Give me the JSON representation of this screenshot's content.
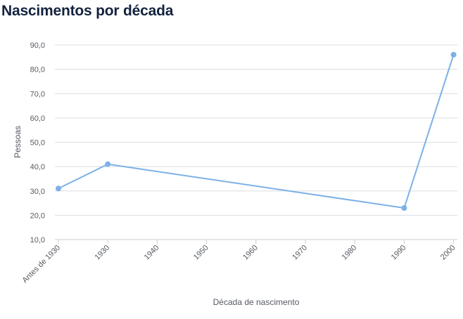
{
  "page_title": "Nascimentos por década",
  "colors": {
    "title": "#13233f",
    "series": "#7cb1e6",
    "grid": "#d9dde3",
    "text": "#555a61"
  },
  "chart_data": {
    "type": "line",
    "title": "Nascimentos por década",
    "xlabel": "Década de nascimento",
    "ylabel": "Pessoas",
    "categories": [
      "Antes de 1930",
      "1930",
      "1940",
      "1950",
      "1960",
      "1970",
      "1980",
      "1990",
      "2000"
    ],
    "series": [
      {
        "values": [
          31,
          41,
          null,
          null,
          null,
          null,
          null,
          23,
          86
        ]
      }
    ],
    "ylim": [
      10,
      90
    ],
    "yticks": [
      "10,0",
      "20,0",
      "30,0",
      "40,0",
      "50,0",
      "60,0",
      "70,0",
      "80,0",
      "90,0"
    ],
    "grid": true,
    "legend": "none"
  }
}
